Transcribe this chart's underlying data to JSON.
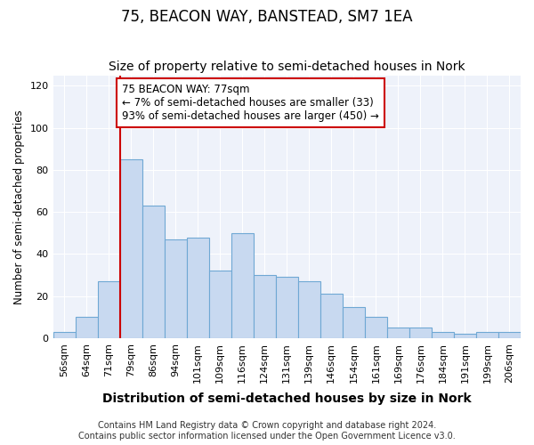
{
  "title1": "75, BEACON WAY, BANSTEAD, SM7 1EA",
  "title2": "Size of property relative to semi-detached houses in Nork",
  "xlabel": "Distribution of semi-detached houses by size in Nork",
  "ylabel": "Number of semi-detached properties",
  "categories": [
    "56sqm",
    "64sqm",
    "71sqm",
    "79sqm",
    "86sqm",
    "94sqm",
    "101sqm",
    "109sqm",
    "116sqm",
    "124sqm",
    "131sqm",
    "139sqm",
    "146sqm",
    "154sqm",
    "161sqm",
    "169sqm",
    "176sqm",
    "184sqm",
    "191sqm",
    "199sqm",
    "206sqm"
  ],
  "values": [
    3,
    10,
    27,
    85,
    63,
    47,
    48,
    32,
    50,
    30,
    29,
    27,
    21,
    15,
    10,
    5,
    5,
    3,
    2,
    3,
    3
  ],
  "bar_color": "#c8d9f0",
  "bar_edge_color": "#6fa8d4",
  "vline_x_index": 3,
  "vline_color": "#cc0000",
  "annotation_text": "75 BEACON WAY: 77sqm\n← 7% of semi-detached houses are smaller (33)\n93% of semi-detached houses are larger (450) →",
  "annotation_box_color": "#ffffff",
  "annotation_box_edge": "#cc0000",
  "ylim": [
    0,
    125
  ],
  "yticks": [
    0,
    20,
    40,
    60,
    80,
    100,
    120
  ],
  "footer1": "Contains HM Land Registry data © Crown copyright and database right 2024.",
  "footer2": "Contains public sector information licensed under the Open Government Licence v3.0.",
  "bg_color": "#ffffff",
  "plot_bg_color": "#eef2fa",
  "grid_color": "#ffffff",
  "title1_fontsize": 12,
  "title2_fontsize": 10,
  "xlabel_fontsize": 10,
  "ylabel_fontsize": 8.5,
  "tick_fontsize": 8,
  "annotation_fontsize": 8.5,
  "footer_fontsize": 7
}
